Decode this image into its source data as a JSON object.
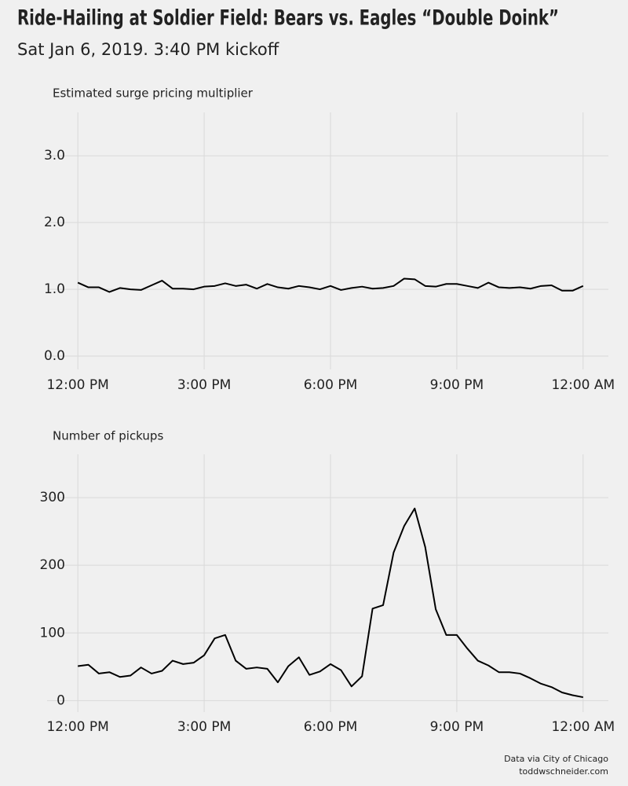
{
  "title": "Ride-Hailing at Soldier Field: Bears vs. Eagles “Double Doink”",
  "subtitle": "Sat Jan 6, 2019. 3:40 PM kickoff",
  "caption": [
    "Data via City of Chicago",
    "toddwschneider.com"
  ],
  "chart_data": [
    {
      "type": "line",
      "title": "Estimated surge pricing multiplier",
      "color": "#000000",
      "grid": true,
      "x": [
        12,
        12.25,
        12.5,
        12.75,
        13,
        13.25,
        13.5,
        13.75,
        14,
        14.25,
        14.5,
        14.75,
        15,
        15.25,
        15.5,
        15.75,
        16,
        16.25,
        16.5,
        16.75,
        17,
        17.25,
        17.5,
        17.75,
        18,
        18.25,
        18.5,
        18.75,
        19,
        19.25,
        19.5,
        19.75,
        20,
        20.25,
        20.5,
        20.75,
        21,
        21.25,
        21.5,
        21.75,
        22,
        22.25,
        22.5,
        22.75,
        23,
        23.25,
        23.5,
        23.75,
        24
      ],
      "values": [
        1.1,
        1.03,
        1.03,
        0.96,
        1.02,
        1.0,
        0.99,
        1.06,
        1.13,
        1.01,
        1.01,
        1.0,
        1.04,
        1.05,
        1.09,
        1.05,
        1.07,
        1.01,
        1.08,
        1.03,
        1.01,
        1.05,
        1.03,
        1.0,
        1.05,
        0.99,
        1.02,
        1.04,
        1.01,
        1.02,
        1.05,
        1.16,
        1.15,
        1.05,
        1.04,
        1.08,
        1.08,
        1.05,
        1.02,
        1.1,
        1.03,
        1.02,
        1.03,
        1.01,
        1.05,
        1.06,
        0.98,
        0.98,
        1.05
      ],
      "xlim": [
        11.27,
        24.6
      ],
      "xticks": [
        {
          "value": 12,
          "label": "12:00 PM"
        },
        {
          "value": 15,
          "label": "3:00 PM"
        },
        {
          "value": 18,
          "label": "6:00 PM"
        },
        {
          "value": 21,
          "label": "9:00 PM"
        },
        {
          "value": 24,
          "label": "12:00 AM"
        }
      ],
      "ylim": [
        -0.2,
        3.65
      ],
      "yticks": [
        {
          "value": 0,
          "label": "0.0"
        },
        {
          "value": 1,
          "label": "1.0"
        },
        {
          "value": 2,
          "label": "2.0"
        },
        {
          "value": 3,
          "label": "3.0"
        }
      ]
    },
    {
      "type": "line",
      "title": "Number of pickups",
      "color": "#000000",
      "grid": true,
      "x": [
        12,
        12.25,
        12.5,
        12.75,
        13,
        13.25,
        13.5,
        13.75,
        14,
        14.25,
        14.5,
        14.75,
        15,
        15.25,
        15.5,
        15.75,
        16,
        16.25,
        16.5,
        16.75,
        17,
        17.25,
        17.5,
        17.75,
        18,
        18.25,
        18.5,
        18.75,
        19,
        19.25,
        19.5,
        19.75,
        20,
        20.25,
        20.5,
        20.75,
        21,
        21.25,
        21.5,
        21.75,
        22,
        22.25,
        22.5,
        22.75,
        23,
        23.25,
        23.5,
        23.75,
        24
      ],
      "values": [
        51,
        53,
        40,
        42,
        35,
        37,
        49,
        40,
        44,
        59,
        54,
        56,
        67,
        92,
        97,
        59,
        47,
        49,
        47,
        27,
        51,
        64,
        38,
        43,
        54,
        45,
        21,
        36,
        136,
        141,
        219,
        258,
        284,
        227,
        135,
        97,
        97,
        77,
        59,
        52,
        42,
        42,
        40,
        33,
        25,
        20,
        12,
        8,
        5
      ],
      "xlim": [
        11.27,
        24.6
      ],
      "xticks": [
        {
          "value": 12,
          "label": "12:00 PM"
        },
        {
          "value": 15,
          "label": "3:00 PM"
        },
        {
          "value": 18,
          "label": "6:00 PM"
        },
        {
          "value": 21,
          "label": "9:00 PM"
        },
        {
          "value": 24,
          "label": "12:00 AM"
        }
      ],
      "ylim": [
        -17,
        364
      ],
      "yticks": [
        0,
        100,
        200,
        300
      ]
    }
  ]
}
